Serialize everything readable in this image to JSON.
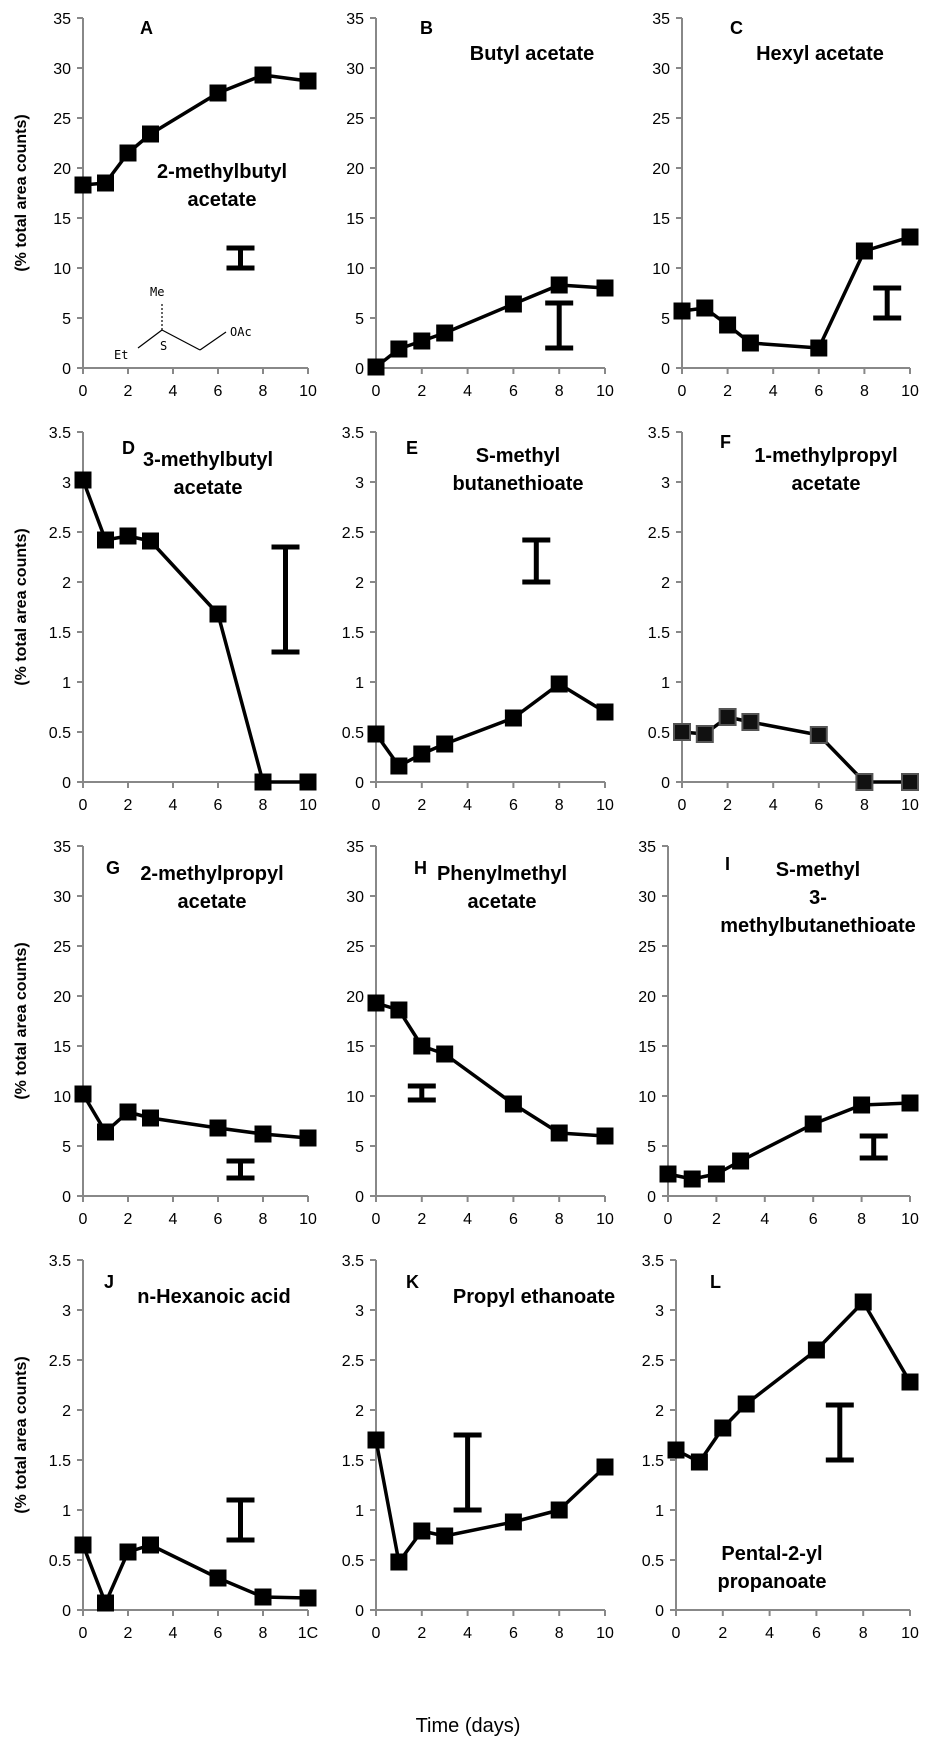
{
  "figure": {
    "xlabel": "Time (days)",
    "ylabel": "(% total area counts)"
  },
  "chart_data": [
    {
      "panel": "A",
      "type": "line",
      "title": "2-methylbutyl acetate",
      "ylim": [
        0,
        35
      ],
      "yticks": [
        0,
        5,
        10,
        15,
        20,
        25,
        30,
        35
      ],
      "xlim": [
        0,
        10
      ],
      "xticks": [
        0,
        2,
        4,
        6,
        8,
        10
      ],
      "x": [
        0,
        1,
        2,
        3,
        6,
        8,
        10
      ],
      "values": [
        18.3,
        18.5,
        21.5,
        23.4,
        27.5,
        29.3,
        28.7
      ],
      "error_bar": {
        "x": 7,
        "low": 10,
        "high": 12
      },
      "marker_color": "#000000"
    },
    {
      "panel": "B",
      "type": "line",
      "title": "Butyl acetate",
      "ylim": [
        0,
        35
      ],
      "yticks": [
        0,
        5,
        10,
        15,
        20,
        25,
        30,
        35
      ],
      "xlim": [
        0,
        10
      ],
      "xticks": [
        0,
        2,
        4,
        6,
        8,
        10
      ],
      "x": [
        0,
        1,
        2,
        3,
        6,
        8,
        10
      ],
      "values": [
        0.1,
        1.9,
        2.7,
        3.5,
        6.4,
        8.3,
        8.0
      ],
      "error_bar": {
        "x": 8,
        "low": 2,
        "high": 6.5
      },
      "marker_color": "#000000"
    },
    {
      "panel": "C",
      "type": "line",
      "title": "Hexyl acetate",
      "ylim": [
        0,
        35
      ],
      "yticks": [
        0,
        5,
        10,
        15,
        20,
        25,
        30,
        35
      ],
      "xlim": [
        0,
        10
      ],
      "xticks": [
        0,
        2,
        4,
        6,
        8,
        10
      ],
      "x": [
        0,
        1,
        2,
        3,
        6,
        8,
        10
      ],
      "values": [
        5.7,
        6.0,
        4.3,
        2.5,
        2.0,
        11.7,
        13.1
      ],
      "error_bar": {
        "x": 9,
        "low": 5,
        "high": 8
      },
      "marker_color": "#000000"
    },
    {
      "panel": "D",
      "type": "line",
      "title": "3-methylbutyl acetate",
      "ylim": [
        0,
        3.5
      ],
      "yticks": [
        0,
        0.5,
        1,
        1.5,
        2,
        2.5,
        3,
        3.5
      ],
      "xlim": [
        0,
        10
      ],
      "xticks": [
        0,
        2,
        4,
        6,
        8,
        10
      ],
      "x": [
        0,
        1,
        2,
        3,
        6,
        8,
        10
      ],
      "values": [
        3.02,
        2.42,
        2.46,
        2.41,
        1.68,
        0,
        0
      ],
      "error_bar": {
        "x": 9,
        "low": 1.3,
        "high": 2.35
      },
      "marker_color": "#000000"
    },
    {
      "panel": "E",
      "type": "line",
      "title": "S-methyl butanethioate",
      "ylim": [
        0,
        3.5
      ],
      "yticks": [
        0,
        0.5,
        1,
        1.5,
        2,
        2.5,
        3,
        3.5
      ],
      "xlim": [
        0,
        10
      ],
      "xticks": [
        0,
        2,
        4,
        6,
        8,
        10
      ],
      "x": [
        0,
        1,
        2,
        3,
        6,
        8,
        10
      ],
      "values": [
        0.48,
        0.16,
        0.28,
        0.38,
        0.64,
        0.98,
        0.7
      ],
      "error_bar": {
        "x": 7,
        "low": 2.0,
        "high": 2.42
      },
      "marker_color": "#000000"
    },
    {
      "panel": "F",
      "type": "line",
      "title": "1-methylpropyl acetate",
      "ylim": [
        0,
        3.5
      ],
      "yticks": [
        0,
        0.5,
        1,
        1.5,
        2,
        2.5,
        3,
        3.5
      ],
      "xlim": [
        0,
        10
      ],
      "xticks": [
        0,
        2,
        4,
        6,
        8,
        10
      ],
      "x": [
        0,
        1,
        2,
        3,
        6,
        8,
        10
      ],
      "values": [
        0.5,
        0.48,
        0.65,
        0.6,
        0.47,
        0,
        0
      ],
      "error_bar": null,
      "marker_color": "#111111"
    },
    {
      "panel": "G",
      "type": "line",
      "title": "2-methylpropyl acetate",
      "ylim": [
        0,
        35
      ],
      "yticks": [
        0,
        5,
        10,
        15,
        20,
        25,
        30,
        35
      ],
      "xlim": [
        0,
        10
      ],
      "xticks": [
        0,
        2,
        4,
        6,
        8,
        10
      ],
      "x": [
        0,
        1,
        2,
        3,
        6,
        8,
        10
      ],
      "values": [
        10.2,
        6.4,
        8.4,
        7.8,
        6.8,
        6.2,
        5.8
      ],
      "error_bar": {
        "x": 7,
        "low": 1.8,
        "high": 3.5
      },
      "marker_color": "#000000"
    },
    {
      "panel": "H",
      "type": "line",
      "title": "Phenylmethyl acetate",
      "ylim": [
        0,
        35
      ],
      "yticks": [
        0,
        5,
        10,
        15,
        20,
        25,
        30,
        35
      ],
      "xlim": [
        0,
        10
      ],
      "xticks": [
        0,
        2,
        4,
        6,
        8,
        10
      ],
      "x": [
        0,
        1,
        2,
        3,
        6,
        8,
        10
      ],
      "values": [
        19.3,
        18.6,
        15.0,
        14.2,
        9.2,
        6.3,
        6.0
      ],
      "error_bar": {
        "x": 2,
        "low": 9.6,
        "high": 11.0
      },
      "marker_color": "#000000"
    },
    {
      "panel": "I",
      "type": "line",
      "title": "S-methyl 3-methylbutanethioate",
      "ylim": [
        0,
        35
      ],
      "yticks": [
        0,
        5,
        10,
        15,
        20,
        25,
        30,
        35
      ],
      "xlim": [
        0,
        10
      ],
      "xticks": [
        0,
        2,
        4,
        6,
        8,
        10
      ],
      "x": [
        0,
        1,
        2,
        3,
        6,
        8,
        10
      ],
      "values": [
        2.2,
        1.7,
        2.2,
        3.5,
        7.2,
        9.1,
        9.3
      ],
      "error_bar": {
        "x": 8.5,
        "low": 3.8,
        "high": 6.0
      },
      "marker_color": "#000000"
    },
    {
      "panel": "J",
      "type": "line",
      "title": "n-Hexanoic acid",
      "ylim": [
        0,
        3.5
      ],
      "yticks": [
        0,
        0.5,
        1,
        1.5,
        2,
        2.5,
        3,
        3.5
      ],
      "xlim": [
        0,
        10
      ],
      "xticks": [
        0,
        2,
        4,
        6,
        8,
        "1C"
      ],
      "x": [
        0,
        1,
        2,
        3,
        6,
        8,
        10
      ],
      "values": [
        0.65,
        0.07,
        0.58,
        0.65,
        0.32,
        0.13,
        0.12
      ],
      "error_bar": {
        "x": 7,
        "low": 0.7,
        "high": 1.1
      },
      "marker_color": "#000000"
    },
    {
      "panel": "K",
      "type": "line",
      "title": "Propyl ethanoate",
      "ylim": [
        0,
        3.5
      ],
      "yticks": [
        0,
        0.5,
        1,
        1.5,
        2,
        2.5,
        3,
        3.5
      ],
      "xlim": [
        0,
        10
      ],
      "xticks": [
        0,
        2,
        4,
        6,
        8,
        10
      ],
      "x": [
        0,
        1,
        2,
        3,
        6,
        8,
        10
      ],
      "values": [
        1.7,
        0.48,
        0.79,
        0.74,
        0.88,
        1.0,
        1.43
      ],
      "error_bar": {
        "x": 4,
        "low": 1.0,
        "high": 1.75
      },
      "marker_color": "#000000"
    },
    {
      "panel": "L",
      "type": "line",
      "title": "Pental-2-yl propanoate",
      "ylim": [
        0,
        3.5
      ],
      "yticks": [
        0,
        0.5,
        1,
        1.5,
        2,
        2.5,
        3,
        3.5
      ],
      "xlim": [
        0,
        10
      ],
      "xticks": [
        0,
        2,
        4,
        6,
        8,
        10
      ],
      "x": [
        0,
        1,
        2,
        3,
        6,
        8,
        10
      ],
      "values": [
        1.6,
        1.48,
        1.82,
        2.06,
        2.6,
        3.08,
        2.28
      ],
      "error_bar": {
        "x": 7,
        "low": 1.5,
        "high": 2.05
      },
      "marker_color": "#000000"
    }
  ],
  "molecule": {
    "labels": {
      "me": "Me",
      "s": "S",
      "et": "Et",
      "oac": "OAc"
    }
  }
}
